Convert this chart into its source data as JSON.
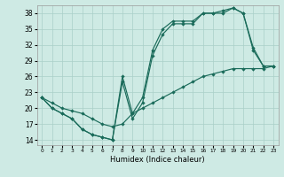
{
  "xlabel": "Humidex (Indice chaleur)",
  "xlim": [
    -0.5,
    23.5
  ],
  "ylim": [
    13,
    39.5
  ],
  "yticks": [
    14,
    17,
    20,
    23,
    26,
    29,
    32,
    35,
    38
  ],
  "xticks": [
    0,
    1,
    2,
    3,
    4,
    5,
    6,
    7,
    8,
    9,
    10,
    11,
    12,
    13,
    14,
    15,
    16,
    17,
    18,
    19,
    20,
    21,
    22,
    23
  ],
  "bg_color": "#ceeae4",
  "grid_color": "#aacfc8",
  "line_color": "#1a6b5a",
  "l1_x": [
    0,
    1,
    2,
    3,
    4,
    5,
    6,
    7,
    8,
    9,
    10,
    11,
    12,
    13,
    14,
    15,
    16,
    17,
    18,
    19,
    20,
    21,
    22,
    23
  ],
  "l1_y": [
    22,
    20,
    19,
    18,
    16,
    15,
    14.5,
    14,
    25,
    18,
    21,
    30,
    34,
    36,
    36,
    36,
    38,
    38,
    38,
    39,
    38,
    31,
    28,
    28
  ],
  "l2_x": [
    0,
    1,
    2,
    3,
    4,
    5,
    6,
    7,
    8,
    9,
    10,
    11,
    12,
    13,
    14,
    15,
    16,
    17,
    18,
    19,
    20,
    21,
    22,
    23
  ],
  "l2_y": [
    22,
    20,
    19,
    18,
    16,
    15,
    14.5,
    14,
    26,
    19,
    22,
    31,
    35,
    36.5,
    36.5,
    36.5,
    38,
    38,
    38.5,
    39,
    38,
    31.5,
    28,
    28
  ],
  "l3_x": [
    0,
    1,
    2,
    3,
    4,
    5,
    6,
    7,
    8,
    9,
    10,
    11,
    12,
    13,
    14,
    15,
    16,
    17,
    18,
    19,
    20,
    21,
    22,
    23
  ],
  "l3_y": [
    22,
    21,
    20,
    19.5,
    19,
    18,
    17,
    16.5,
    17,
    19,
    20,
    21,
    22,
    23,
    24,
    25,
    26,
    26.5,
    27,
    27.5,
    27.5,
    27.5,
    27.5,
    28
  ]
}
